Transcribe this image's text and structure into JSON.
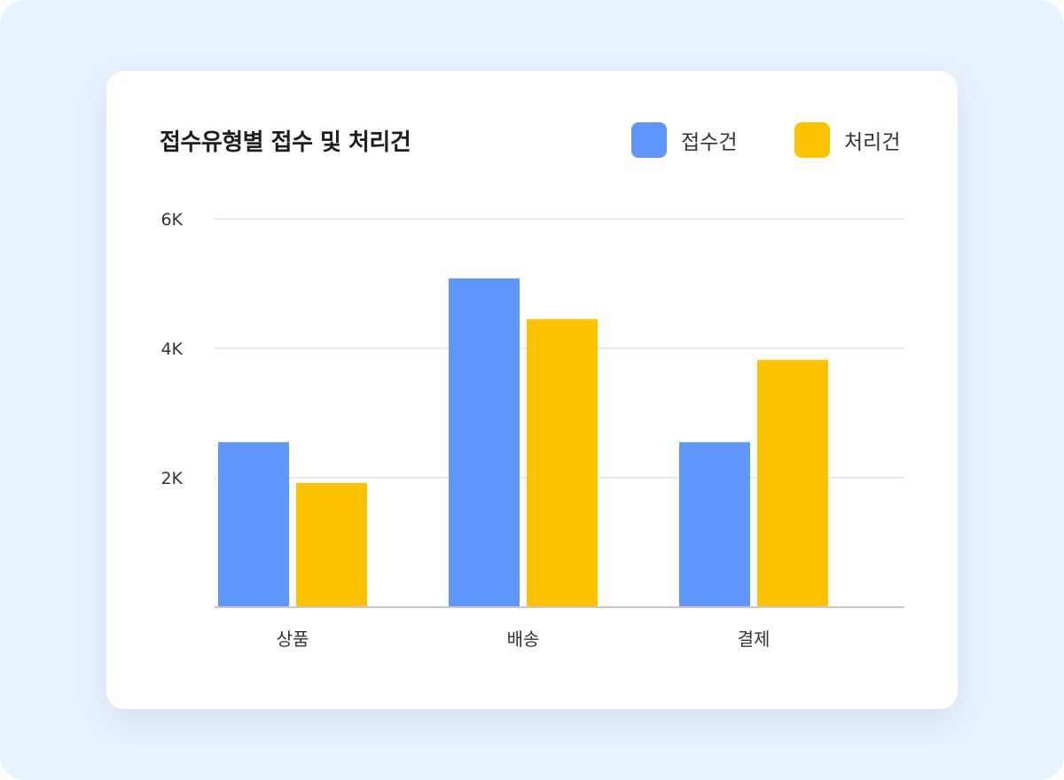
{
  "chart_data": {
    "type": "bar",
    "title": "접수유형별 접수 및 처리건",
    "categories": [
      "상품",
      "배송",
      "결제"
    ],
    "series": [
      {
        "name": "접수건",
        "values": [
          2550,
          5080,
          2550
        ],
        "color": "#5e96fc"
      },
      {
        "name": "처리건",
        "values": [
          1920,
          4450,
          3820
        ],
        "color": "#fec300"
      }
    ],
    "ylim": [
      0,
      6000
    ],
    "yticks": [
      2000,
      4000,
      6000
    ],
    "ytick_labels": [
      "2K",
      "4K",
      "6K"
    ],
    "grid": true,
    "legend": "top-right",
    "xlabel": "",
    "ylabel": ""
  }
}
